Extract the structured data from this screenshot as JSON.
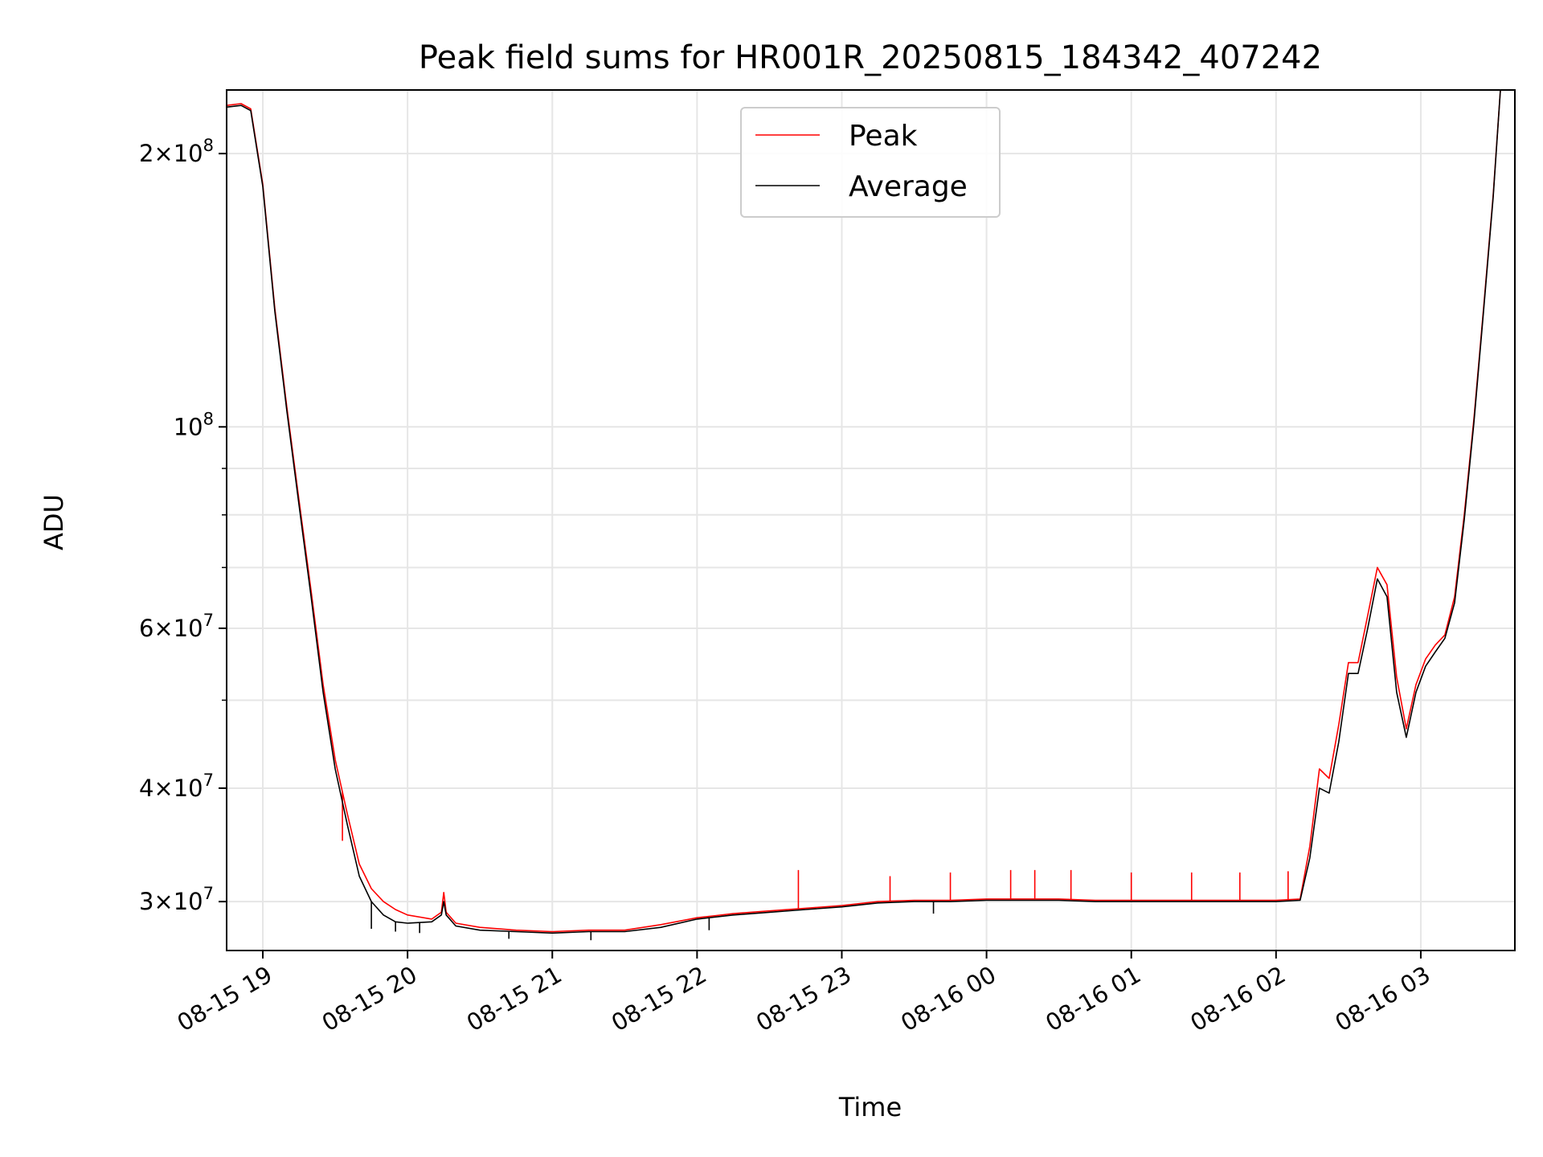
{
  "chart_data": {
    "type": "line",
    "title": "Peak field sums for HR001R_20250815_184342_407242",
    "xlabel": "Time",
    "ylabel": "ADU",
    "yscale": "log",
    "ylim": [
      26500000,
      235000000
    ],
    "xlim": [
      "2025-08-15 18:45",
      "2025-08-16 03:39"
    ],
    "grid": true,
    "legend_position": "upper center",
    "x_ticks": [
      {
        "value": "2025-08-15 19:00",
        "label": "08-15 19"
      },
      {
        "value": "2025-08-15 20:00",
        "label": "08-15 20"
      },
      {
        "value": "2025-08-15 21:00",
        "label": "08-15 21"
      },
      {
        "value": "2025-08-15 22:00",
        "label": "08-15 22"
      },
      {
        "value": "2025-08-15 23:00",
        "label": "08-15 23"
      },
      {
        "value": "2025-08-16 00:00",
        "label": "08-16 00"
      },
      {
        "value": "2025-08-16 01:00",
        "label": "08-16 01"
      },
      {
        "value": "2025-08-16 02:00",
        "label": "08-16 02"
      },
      {
        "value": "2025-08-16 03:00",
        "label": "08-16 03"
      }
    ],
    "y_ticks_major": [
      {
        "value": 30000000,
        "mantissa": "3",
        "exponent": "7"
      },
      {
        "value": 40000000,
        "mantissa": "4",
        "exponent": "7"
      },
      {
        "value": 60000000,
        "mantissa": "6",
        "exponent": "7"
      },
      {
        "value": 100000000,
        "mantissa": "",
        "exponent": "8"
      },
      {
        "value": 200000000,
        "mantissa": "2",
        "exponent": "8"
      }
    ],
    "y_ticks_minor": [
      50000000,
      70000000,
      80000000,
      90000000
    ],
    "series": [
      {
        "name": "Peak",
        "color": "#ff0000",
        "x": [
          "2025-08-15 18:45",
          "2025-08-15 18:51",
          "2025-08-15 18:55",
          "2025-08-15 19:00",
          "2025-08-15 19:05",
          "2025-08-15 19:10",
          "2025-08-15 19:15",
          "2025-08-15 19:20",
          "2025-08-15 19:25",
          "2025-08-15 19:30",
          "2025-08-15 19:35",
          "2025-08-15 19:40",
          "2025-08-15 19:45",
          "2025-08-15 19:50",
          "2025-08-15 19:55",
          "2025-08-15 20:00",
          "2025-08-15 20:10",
          "2025-08-15 20:14",
          "2025-08-15 20:15",
          "2025-08-15 20:16",
          "2025-08-15 20:20",
          "2025-08-15 20:30",
          "2025-08-15 20:45",
          "2025-08-15 21:00",
          "2025-08-15 21:15",
          "2025-08-15 21:30",
          "2025-08-15 21:45",
          "2025-08-15 22:00",
          "2025-08-15 22:15",
          "2025-08-15 22:30",
          "2025-08-15 22:45",
          "2025-08-15 23:00",
          "2025-08-15 23:15",
          "2025-08-15 23:30",
          "2025-08-15 23:45",
          "2025-08-16 00:00",
          "2025-08-16 00:15",
          "2025-08-16 00:30",
          "2025-08-16 00:45",
          "2025-08-16 01:00",
          "2025-08-16 01:15",
          "2025-08-16 01:30",
          "2025-08-16 01:45",
          "2025-08-16 02:00",
          "2025-08-16 02:10",
          "2025-08-16 02:14",
          "2025-08-16 02:18",
          "2025-08-16 02:22",
          "2025-08-16 02:26",
          "2025-08-16 02:30",
          "2025-08-16 02:34",
          "2025-08-16 02:38",
          "2025-08-16 02:42",
          "2025-08-16 02:46",
          "2025-08-16 02:50",
          "2025-08-16 02:54",
          "2025-08-16 02:58",
          "2025-08-16 03:02",
          "2025-08-16 03:06",
          "2025-08-16 03:10",
          "2025-08-16 03:14",
          "2025-08-16 03:18",
          "2025-08-16 03:22",
          "2025-08-16 03:26",
          "2025-08-16 03:30",
          "2025-08-16 03:33",
          "2025-08-16 03:39"
        ],
        "y": [
          226000000,
          227000000,
          224000000,
          185000000,
          135000000,
          105000000,
          83000000,
          66000000,
          52000000,
          43000000,
          37500000,
          33000000,
          31000000,
          30000000,
          29400000,
          29000000,
          28700000,
          29200000,
          30700000,
          29200000,
          28400000,
          28100000,
          27900000,
          27800000,
          27900000,
          27900000,
          28300000,
          28800000,
          29100000,
          29300000,
          29500000,
          29700000,
          30000000,
          30100000,
          30100000,
          30200000,
          30200000,
          30200000,
          30100000,
          30100000,
          30100000,
          30100000,
          30100000,
          30100000,
          30200000,
          34500000,
          42000000,
          41000000,
          47000000,
          55000000,
          55000000,
          62000000,
          70000000,
          67000000,
          53000000,
          46500000,
          52000000,
          55500000,
          57500000,
          59000000,
          65000000,
          80000000,
          102000000,
          135000000,
          180000000,
          235000000,
          235000000
        ],
        "spikes": [
          {
            "x": "2025-08-15 19:33",
            "y": 35000000
          },
          {
            "x": "2025-08-15 22:42",
            "y": 32500000
          },
          {
            "x": "2025-08-15 23:20",
            "y": 32000000
          },
          {
            "x": "2025-08-15 23:45",
            "y": 32300000
          },
          {
            "x": "2025-08-16 00:10",
            "y": 32500000
          },
          {
            "x": "2025-08-16 00:20",
            "y": 32500000
          },
          {
            "x": "2025-08-16 00:35",
            "y": 32500000
          },
          {
            "x": "2025-08-16 01:00",
            "y": 32300000
          },
          {
            "x": "2025-08-16 01:25",
            "y": 32300000
          },
          {
            "x": "2025-08-16 01:45",
            "y": 32300000
          },
          {
            "x": "2025-08-16 02:05",
            "y": 32400000
          }
        ]
      },
      {
        "name": "Average",
        "color": "#000000",
        "x": [
          "2025-08-15 18:45",
          "2025-08-15 18:51",
          "2025-08-15 18:55",
          "2025-08-15 19:00",
          "2025-08-15 19:05",
          "2025-08-15 19:10",
          "2025-08-15 19:15",
          "2025-08-15 19:20",
          "2025-08-15 19:25",
          "2025-08-15 19:30",
          "2025-08-15 19:35",
          "2025-08-15 19:40",
          "2025-08-15 19:45",
          "2025-08-15 19:50",
          "2025-08-15 19:55",
          "2025-08-15 20:00",
          "2025-08-15 20:10",
          "2025-08-15 20:14",
          "2025-08-15 20:15",
          "2025-08-15 20:16",
          "2025-08-15 20:20",
          "2025-08-15 20:30",
          "2025-08-15 20:45",
          "2025-08-15 21:00",
          "2025-08-15 21:15",
          "2025-08-15 21:30",
          "2025-08-15 21:45",
          "2025-08-15 22:00",
          "2025-08-15 22:15",
          "2025-08-15 22:30",
          "2025-08-15 22:45",
          "2025-08-15 23:00",
          "2025-08-15 23:15",
          "2025-08-15 23:30",
          "2025-08-15 23:45",
          "2025-08-16 00:00",
          "2025-08-16 00:15",
          "2025-08-16 00:30",
          "2025-08-16 00:45",
          "2025-08-16 01:00",
          "2025-08-16 01:15",
          "2025-08-16 01:30",
          "2025-08-16 01:45",
          "2025-08-16 02:00",
          "2025-08-16 02:10",
          "2025-08-16 02:14",
          "2025-08-16 02:18",
          "2025-08-16 02:22",
          "2025-08-16 02:26",
          "2025-08-16 02:30",
          "2025-08-16 02:34",
          "2025-08-16 02:38",
          "2025-08-16 02:42",
          "2025-08-16 02:46",
          "2025-08-16 02:50",
          "2025-08-16 02:54",
          "2025-08-16 02:58",
          "2025-08-16 03:02",
          "2025-08-16 03:06",
          "2025-08-16 03:10",
          "2025-08-16 03:14",
          "2025-08-16 03:18",
          "2025-08-16 03:22",
          "2025-08-16 03:26",
          "2025-08-16 03:30",
          "2025-08-16 03:33",
          "2025-08-16 03:39"
        ],
        "y": [
          225000000,
          226000000,
          223000000,
          184000000,
          134000000,
          104000000,
          82000000,
          65000000,
          51000000,
          42000000,
          36500000,
          32000000,
          30000000,
          29000000,
          28500000,
          28400000,
          28500000,
          29000000,
          30000000,
          29000000,
          28200000,
          27900000,
          27800000,
          27700000,
          27800000,
          27800000,
          28100000,
          28700000,
          29000000,
          29200000,
          29400000,
          29600000,
          29900000,
          30000000,
          30000000,
          30100000,
          30100000,
          30100000,
          30000000,
          30000000,
          30000000,
          30000000,
          30000000,
          30000000,
          30100000,
          33500000,
          40000000,
          39500000,
          45000000,
          53500000,
          53500000,
          60000000,
          68000000,
          65000000,
          51000000,
          45500000,
          51000000,
          54500000,
          56500000,
          58500000,
          64000000,
          79000000,
          101000000,
          134000000,
          179000000,
          235000000,
          235000000
        ],
        "dips": [
          {
            "x": "2025-08-15 19:45",
            "y": 28000000
          },
          {
            "x": "2025-08-15 19:55",
            "y": 27800000
          },
          {
            "x": "2025-08-15 20:05",
            "y": 27700000
          },
          {
            "x": "2025-08-15 20:42",
            "y": 27300000
          },
          {
            "x": "2025-08-15 21:16",
            "y": 27200000
          },
          {
            "x": "2025-08-15 22:05",
            "y": 27900000
          },
          {
            "x": "2025-08-15 23:38",
            "y": 29100000
          }
        ]
      }
    ]
  }
}
